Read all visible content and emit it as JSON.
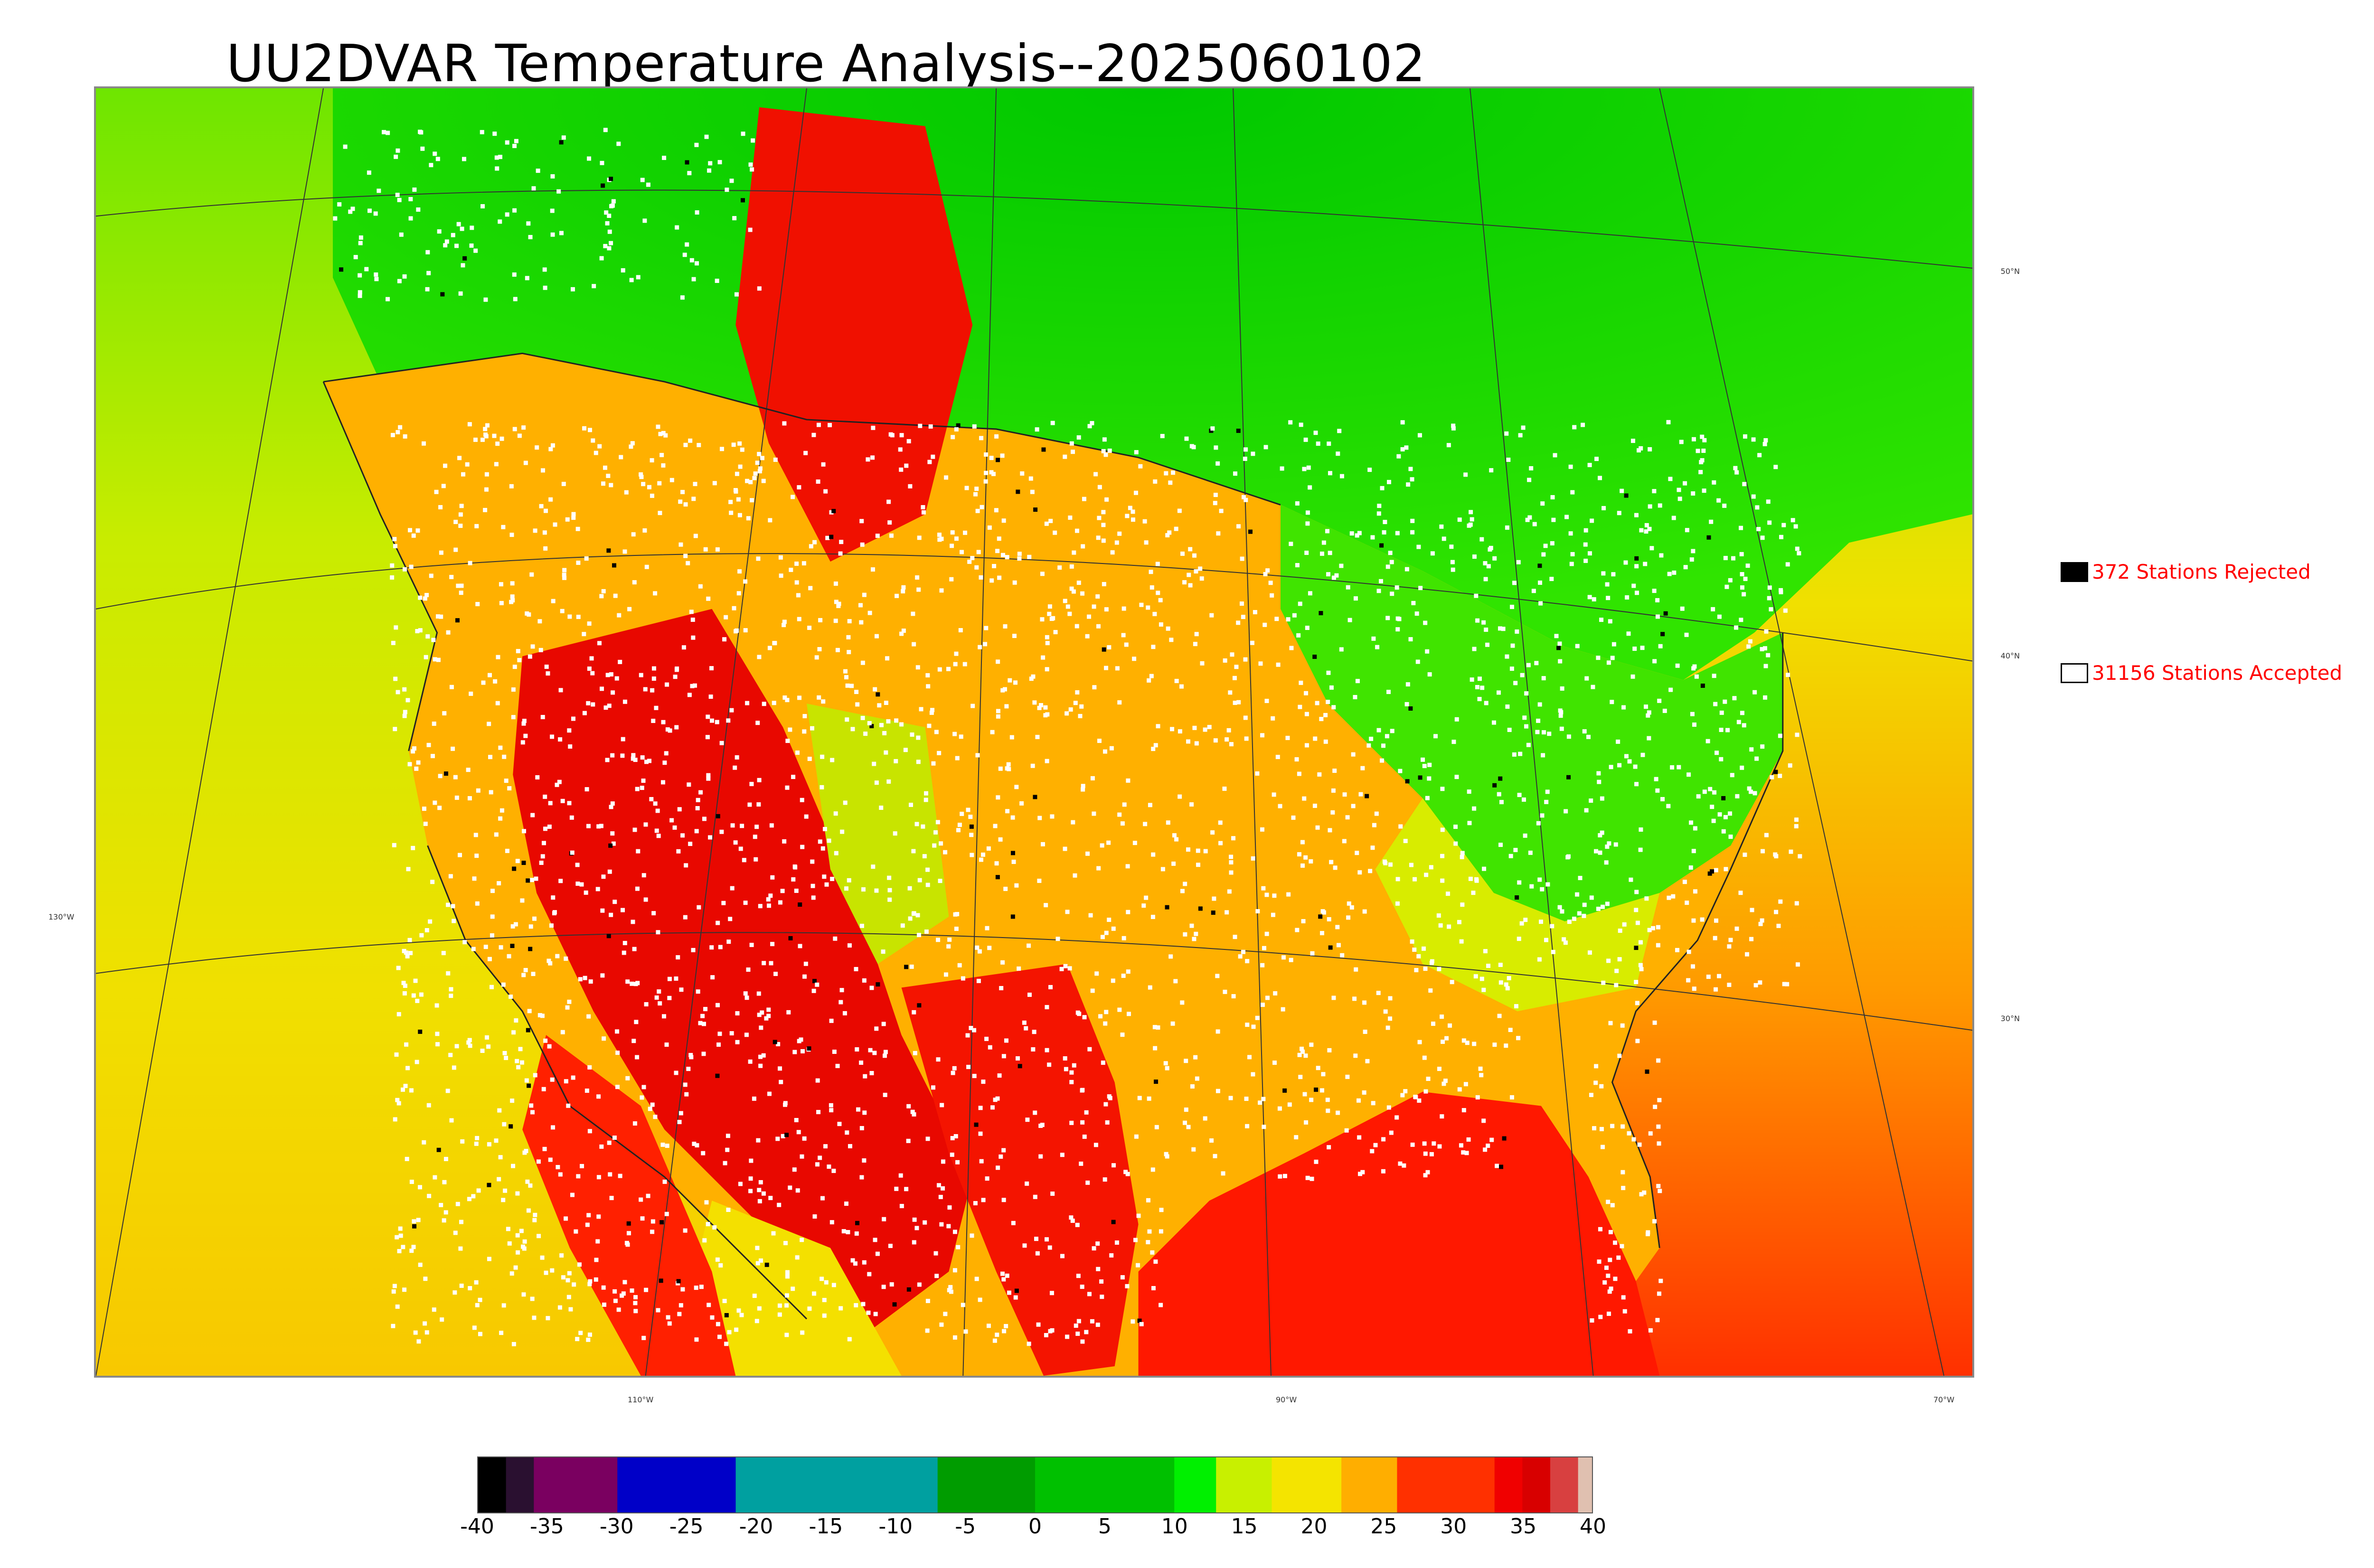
{
  "map": {
    "title": "UU2DVAR Temperature Analysis--2025060102",
    "lon_labels": [
      "130°W",
      "110°W",
      "90°W",
      "70°W"
    ],
    "lat_labels": [
      "50°N",
      "40°N",
      "30°N"
    ],
    "legend": {
      "rejected": {
        "label": "372 Stations Rejected",
        "swatch_color": "#000000"
      },
      "accepted": {
        "label": "31156 Stations Accepted",
        "swatch_color": "#ffffff"
      }
    },
    "colorbar": {
      "min": -40,
      "max": 40,
      "tick_labels": [
        "-40",
        "-35",
        "-30",
        "-25",
        "-20",
        "-15",
        "-10",
        "-5",
        "0",
        "5",
        "10",
        "15",
        "20",
        "25",
        "30",
        "35",
        "40"
      ]
    },
    "colors": {
      "warm": "#ff0000",
      "hot": "#e60000",
      "orange": "#ffaa00",
      "yellow": "#f5e600",
      "green": "#00e600",
      "station_accepted": "#ffffff",
      "station_rejected": "#000000"
    }
  }
}
